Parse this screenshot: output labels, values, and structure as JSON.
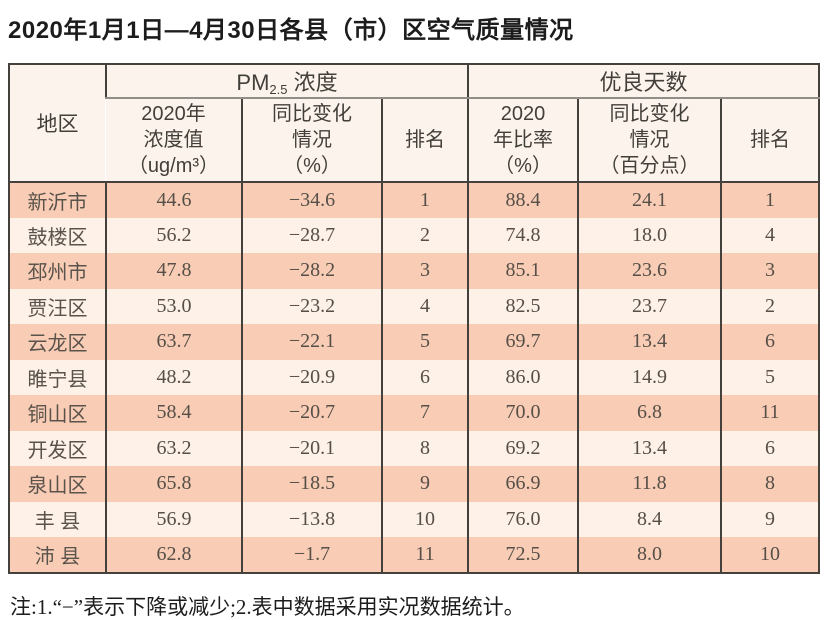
{
  "title": "2020年1月1日—4月30日各县（市）区空气质量情况",
  "note": "注:1.“−”表示下降或减少;2.表中数据采用实况数据统计。",
  "table": {
    "region_header": "地区",
    "pm_group": {
      "prefix": "PM",
      "sub": "2.5",
      "suffix": " 浓度"
    },
    "days_group": "优良天数",
    "sub_headers": [
      {
        "lines": [
          "2020年",
          "浓度值",
          "（ug/m³）"
        ]
      },
      {
        "lines": [
          "同比变化",
          "情况",
          "（%）"
        ]
      },
      {
        "lines": [
          "排名"
        ]
      },
      {
        "lines": [
          "2020",
          "年比率",
          "（%）"
        ]
      },
      {
        "lines": [
          "同比变化",
          "情况",
          "（百分点）"
        ]
      },
      {
        "lines": [
          "排名"
        ]
      }
    ],
    "rows": [
      {
        "region": "新沂市",
        "pm_value": "44.6",
        "pm_change": "−34.6",
        "pm_rank": "1",
        "ratio": "88.4",
        "ratio_change": "24.1",
        "rank": "1"
      },
      {
        "region": "鼓楼区",
        "pm_value": "56.2",
        "pm_change": "−28.7",
        "pm_rank": "2",
        "ratio": "74.8",
        "ratio_change": "18.0",
        "rank": "4"
      },
      {
        "region": "邳州市",
        "pm_value": "47.8",
        "pm_change": "−28.2",
        "pm_rank": "3",
        "ratio": "85.1",
        "ratio_change": "23.6",
        "rank": "3"
      },
      {
        "region": "贾汪区",
        "pm_value": "53.0",
        "pm_change": "−23.2",
        "pm_rank": "4",
        "ratio": "82.5",
        "ratio_change": "23.7",
        "rank": "2"
      },
      {
        "region": "云龙区",
        "pm_value": "63.7",
        "pm_change": "−22.1",
        "pm_rank": "5",
        "ratio": "69.7",
        "ratio_change": "13.4",
        "rank": "6"
      },
      {
        "region": "睢宁县",
        "pm_value": "48.2",
        "pm_change": "−20.9",
        "pm_rank": "6",
        "ratio": "86.0",
        "ratio_change": "14.9",
        "rank": "5"
      },
      {
        "region": "铜山区",
        "pm_value": "58.4",
        "pm_change": "−20.7",
        "pm_rank": "7",
        "ratio": "70.0",
        "ratio_change": "6.8",
        "rank": "11"
      },
      {
        "region": "开发区",
        "pm_value": "63.2",
        "pm_change": "−20.1",
        "pm_rank": "8",
        "ratio": "69.2",
        "ratio_change": "13.4",
        "rank": "6"
      },
      {
        "region": "泉山区",
        "pm_value": "65.8",
        "pm_change": "−18.5",
        "pm_rank": "9",
        "ratio": "66.9",
        "ratio_change": "11.8",
        "rank": "8"
      },
      {
        "region": "丰 县",
        "pm_value": "56.9",
        "pm_change": "−13.8",
        "pm_rank": "10",
        "ratio": "76.0",
        "ratio_change": "8.4",
        "rank": "9"
      },
      {
        "region": "沛 县",
        "pm_value": "62.8",
        "pm_change": "−1.7",
        "pm_rank": "11",
        "ratio": "72.5",
        "ratio_change": "8.0",
        "rank": "10"
      }
    ]
  }
}
